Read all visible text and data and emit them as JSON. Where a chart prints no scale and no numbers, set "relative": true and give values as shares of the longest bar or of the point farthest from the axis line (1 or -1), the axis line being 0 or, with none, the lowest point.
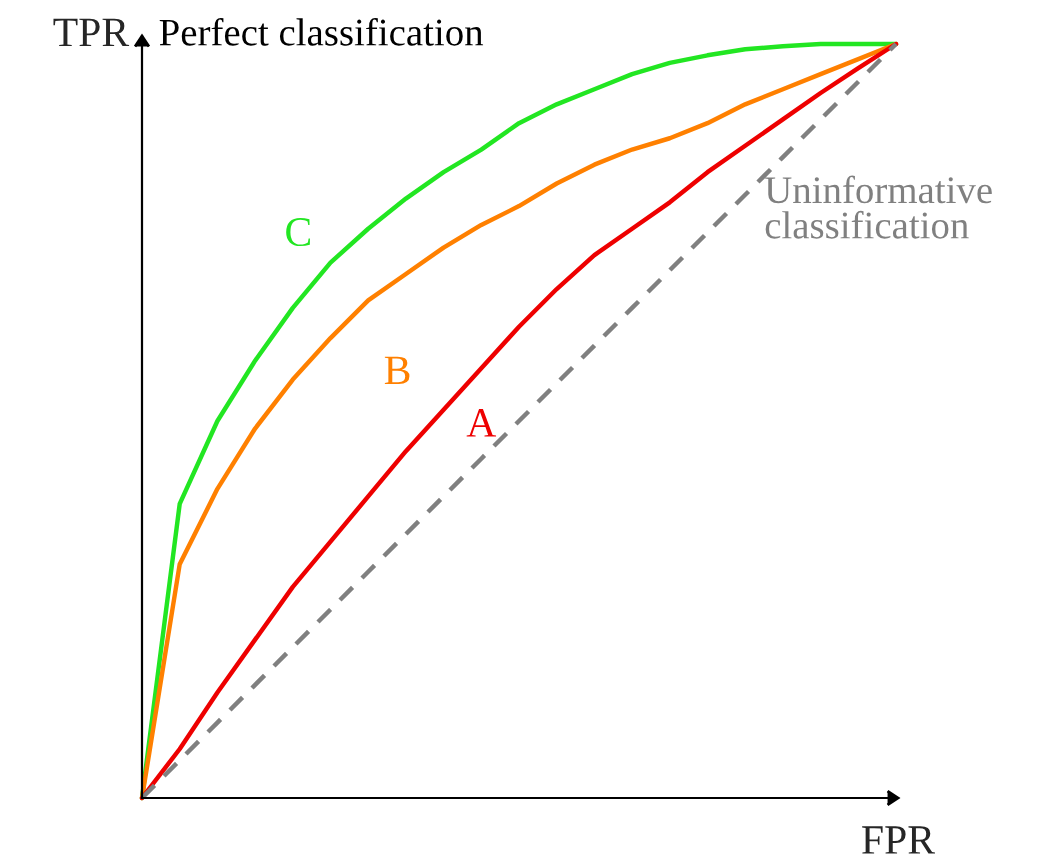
{
  "chart_data": {
    "type": "line",
    "relative": true,
    "xlabel": "FPR",
    "ylabel": "TPR",
    "annotations": [
      "Perfect classification",
      "Uninformative\nclassification"
    ],
    "categories": [
      null,
      null,
      null,
      null,
      null,
      null,
      null,
      null,
      null,
      null,
      null,
      null,
      null,
      null,
      null,
      null,
      null,
      null,
      null,
      null,
      null
    ],
    "series": [
      {
        "name": "C",
        "color": "#22e622",
        "values": [
          0,
          0.39,
          0.5,
          0.58,
          0.65,
          0.71,
          0.755,
          0.795,
          0.83,
          0.86,
          0.895,
          0.92,
          0.94,
          0.96,
          0.975,
          0.985,
          0.993,
          0.997,
          1,
          1,
          1
        ]
      },
      {
        "name": "B",
        "color": "#ff8000",
        "values": [
          0,
          0.31,
          0.41,
          0.49,
          0.555,
          0.61,
          0.66,
          0.695,
          0.73,
          0.76,
          0.785,
          0.815,
          0.84,
          0.86,
          0.875,
          0.895,
          0.92,
          0.94,
          0.96,
          0.98,
          1
        ]
      },
      {
        "name": "A",
        "color": "#ee0000",
        "values": [
          0,
          0.065,
          0.14,
          0.21,
          0.28,
          0.34,
          0.4,
          0.46,
          0.515,
          0.57,
          0.625,
          0.675,
          0.72,
          0.755,
          0.79,
          0.83,
          0.865,
          0.9,
          0.935,
          0.968,
          1
        ]
      },
      {
        "color": "#808080",
        "line_style": "dashed",
        "values": [
          0,
          0.05,
          0.1,
          0.15,
          0.2,
          0.25,
          0.3,
          0.35,
          0.4,
          0.45,
          0.5,
          0.55,
          0.6,
          0.65,
          0.7,
          0.75,
          0.8,
          0.85,
          0.9,
          0.95,
          1
        ]
      }
    ]
  }
}
